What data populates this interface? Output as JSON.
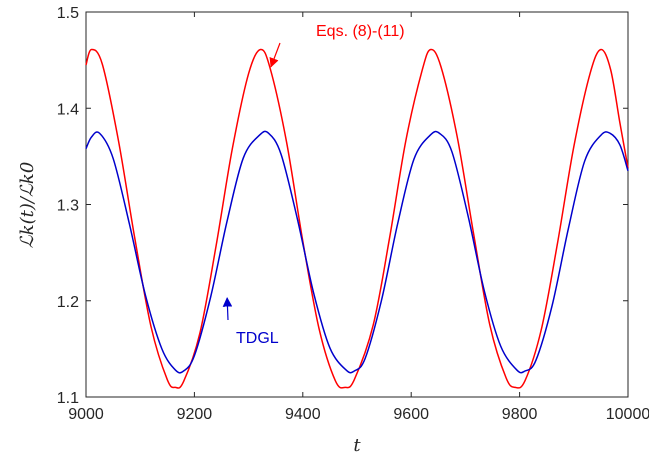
{
  "chart_data": {
    "type": "line",
    "title": "",
    "xlabel": "t",
    "ylabel": "ℒk(t)/ℒk0",
    "xlim": [
      9000,
      10000
    ],
    "ylim": [
      1.1,
      1.5
    ],
    "xticks": [
      9000,
      9200,
      9400,
      9600,
      9800,
      10000
    ],
    "yticks": [
      1.1,
      1.2,
      1.3,
      1.4,
      1.5
    ],
    "xtick_labels": [
      "9000",
      "9200",
      "9400",
      "9600",
      "9800",
      "10000"
    ],
    "ytick_labels": [
      "1.1",
      "1.2",
      "1.3",
      "1.4",
      "1.5"
    ],
    "grid": false,
    "series": [
      {
        "name": "Eqs. (8)-(11)",
        "color": "#ff0000",
        "x": [
          9000,
          9010,
          9030,
          9060,
          9090,
          9120,
          9150,
          9165,
          9180,
          9210,
          9240,
          9270,
          9300,
          9322,
          9340,
          9370,
          9400,
          9430,
          9460,
          9478,
          9495,
          9530,
          9560,
          9590,
          9620,
          9636,
          9655,
          9685,
          9715,
          9745,
          9775,
          9792,
          9810,
          9840,
          9870,
          9900,
          9930,
          9950,
          9968,
          9985,
          10000
        ],
        "values": [
          1.445,
          1.461,
          1.446,
          1.366,
          1.265,
          1.173,
          1.118,
          1.11,
          1.116,
          1.166,
          1.257,
          1.358,
          1.436,
          1.461,
          1.441,
          1.365,
          1.262,
          1.171,
          1.117,
          1.11,
          1.118,
          1.175,
          1.265,
          1.366,
          1.439,
          1.461,
          1.443,
          1.37,
          1.27,
          1.175,
          1.12,
          1.11,
          1.117,
          1.17,
          1.26,
          1.36,
          1.436,
          1.461,
          1.44,
          1.385,
          1.338
        ]
      },
      {
        "name": "TDGL",
        "color": "#0000cc",
        "x": [
          9000,
          9010,
          9025,
          9050,
          9080,
          9110,
          9140,
          9165,
          9180,
          9200,
          9230,
          9260,
          9290,
          9320,
          9337,
          9360,
          9390,
          9420,
          9450,
          9480,
          9495,
          9515,
          9545,
          9575,
          9605,
          9635,
          9652,
          9675,
          9705,
          9735,
          9765,
          9795,
          9810,
          9830,
          9860,
          9890,
          9920,
          9950,
          9967,
          9985,
          10000
        ],
        "values": [
          1.358,
          1.37,
          1.374,
          1.348,
          1.28,
          1.205,
          1.15,
          1.128,
          1.127,
          1.143,
          1.204,
          1.282,
          1.348,
          1.372,
          1.374,
          1.352,
          1.285,
          1.208,
          1.151,
          1.128,
          1.127,
          1.14,
          1.2,
          1.28,
          1.347,
          1.372,
          1.374,
          1.355,
          1.288,
          1.21,
          1.153,
          1.128,
          1.127,
          1.138,
          1.195,
          1.275,
          1.345,
          1.372,
          1.374,
          1.362,
          1.335
        ]
      }
    ],
    "annotations": [
      {
        "text": "Eqs. (8)-(11)",
        "color": "#ff0000",
        "target": [
          9345,
          1.44
        ]
      },
      {
        "text": "TDGL",
        "color": "#0000cc",
        "target": [
          9253,
          1.207
        ]
      }
    ]
  }
}
